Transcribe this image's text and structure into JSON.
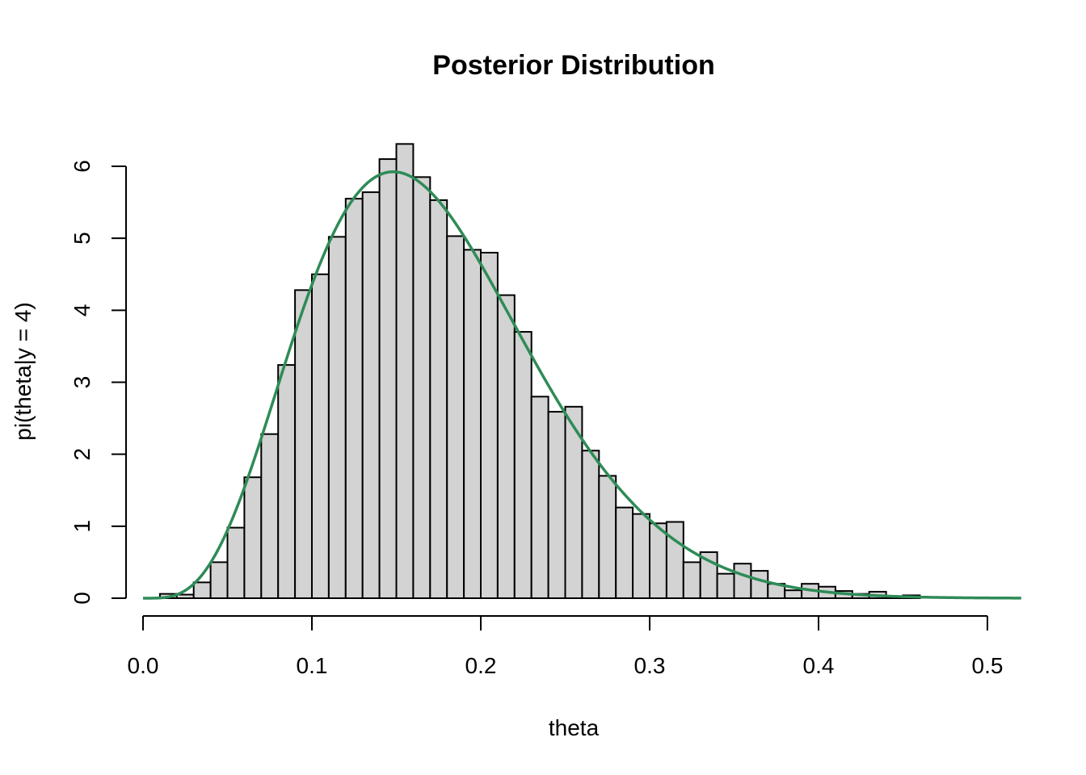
{
  "chart_data": {
    "type": "bar",
    "title": "Posterior Distribution",
    "xlabel": "theta",
    "ylabel": "pi(theta|y = 4)",
    "xlim": [
      0,
      0.52
    ],
    "ylim": [
      0,
      6.3
    ],
    "x_ticks": [
      "0.0",
      "0.1",
      "0.2",
      "0.3",
      "0.4",
      "0.5"
    ],
    "x_tick_values": [
      0,
      0.1,
      0.2,
      0.3,
      0.4,
      0.5
    ],
    "y_ticks": [
      "0",
      "1",
      "2",
      "3",
      "4",
      "5",
      "6"
    ],
    "y_tick_values": [
      0,
      1,
      2,
      3,
      4,
      5,
      6
    ],
    "grid": false,
    "histogram": {
      "bin_width": 0.01,
      "bin_starts": [
        0.0,
        0.01,
        0.02,
        0.03,
        0.04,
        0.05,
        0.06,
        0.07,
        0.08,
        0.09,
        0.1,
        0.11,
        0.12,
        0.13,
        0.14,
        0.15,
        0.16,
        0.17,
        0.18,
        0.19,
        0.2,
        0.21,
        0.22,
        0.23,
        0.24,
        0.25,
        0.26,
        0.27,
        0.28,
        0.29,
        0.3,
        0.31,
        0.32,
        0.33,
        0.34,
        0.35,
        0.36,
        0.37,
        0.38,
        0.39,
        0.4,
        0.41,
        0.42,
        0.43,
        0.44,
        0.45
      ],
      "density": [
        0,
        0.06,
        0.05,
        0.22,
        0.5,
        0.98,
        1.68,
        2.28,
        3.24,
        4.28,
        4.5,
        5.02,
        5.55,
        5.64,
        6.1,
        6.31,
        5.85,
        5.53,
        5.03,
        4.84,
        4.8,
        4.21,
        3.7,
        2.8,
        2.59,
        2.66,
        2.05,
        1.7,
        1.26,
        1.17,
        1.04,
        1.06,
        0.5,
        0.64,
        0.34,
        0.48,
        0.38,
        0.2,
        0.11,
        0.2,
        0.16,
        0.1,
        0.06,
        0.09,
        0.02,
        0.04
      ],
      "fill": "#d3d3d3",
      "border": "#000000"
    },
    "density_curve": {
      "distribution": "beta",
      "shape1": 5,
      "shape2": 24,
      "x_range": [
        0,
        0.52
      ],
      "color": "#2e8b57"
    }
  }
}
